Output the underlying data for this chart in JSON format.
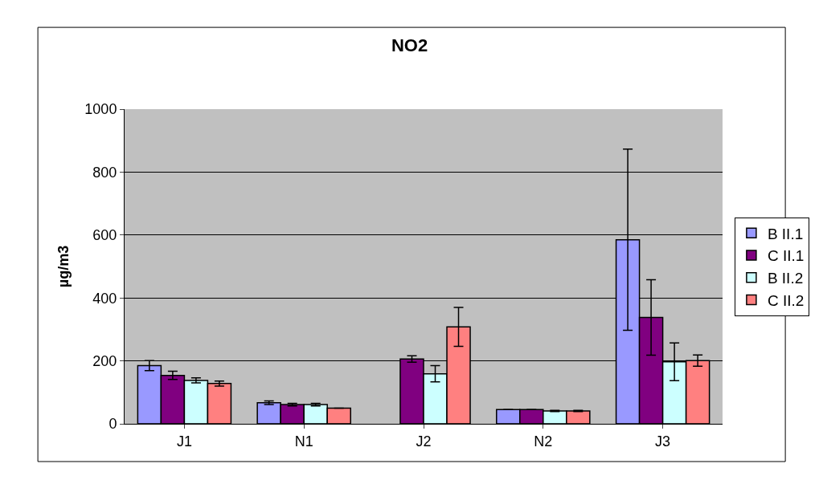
{
  "chart_data": {
    "type": "bar",
    "title": "NO2",
    "ylabel": "µg/m3",
    "categories": [
      "J1",
      "N1",
      "J2",
      "N2",
      "J3"
    ],
    "series": [
      {
        "name": "B II.1",
        "color": "#9999ff",
        "values": [
          185,
          67,
          null,
          45,
          585
        ],
        "errors": [
          16,
          6,
          null,
          null,
          288
        ]
      },
      {
        "name": "C II.1",
        "color": "#800080",
        "values": [
          154,
          61,
          206,
          45,
          338
        ],
        "errors": [
          13,
          4,
          10,
          null,
          120
        ]
      },
      {
        "name": "B II.2",
        "color": "#ccffff",
        "values": [
          138,
          61,
          159,
          41,
          197
        ],
        "errors": [
          8,
          4,
          26,
          2,
          60
        ]
      },
      {
        "name": "C II.2",
        "color": "#ff8080",
        "values": [
          128,
          50,
          308,
          41,
          201
        ],
        "errors": [
          8,
          null,
          62,
          2,
          18
        ]
      }
    ],
    "ylim": [
      0,
      1000
    ],
    "yticks": [
      0,
      200,
      400,
      600,
      800,
      1000
    ],
    "grid": "y",
    "legend": "right"
  }
}
